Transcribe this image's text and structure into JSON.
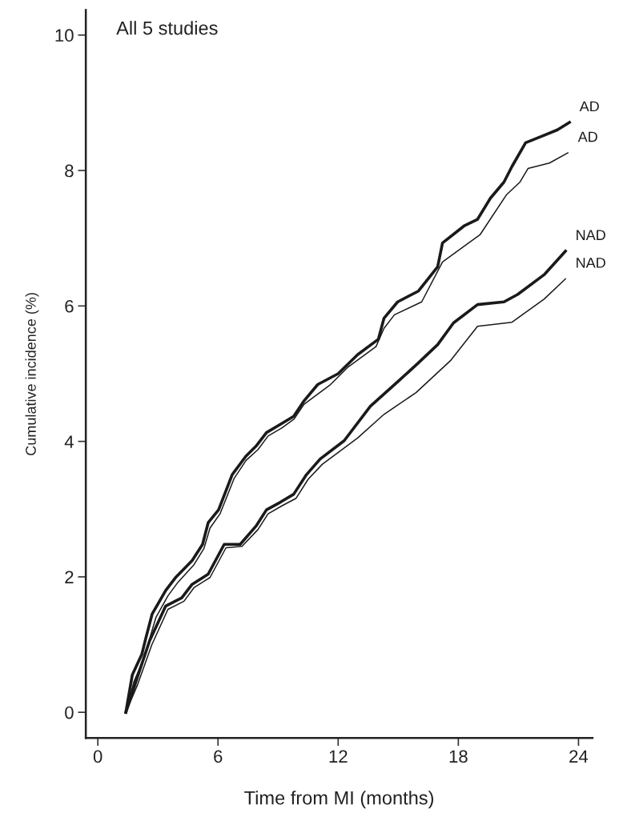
{
  "chart_data": {
    "type": "line",
    "title": "All 5 studies",
    "xlabel": "Time from MI (months)",
    "ylabel": "Cumulative incidence (%)",
    "xlim": [
      -0.6,
      24.7
    ],
    "ylim": [
      -0.38,
      10.37
    ],
    "xticks": [
      0,
      6,
      12,
      18,
      24
    ],
    "yticks": [
      0,
      2,
      4,
      6,
      8,
      10
    ],
    "grid": false,
    "legend": false,
    "marker": "none",
    "line_style": "solid",
    "series": [
      {
        "name": "AD",
        "color": "#1a1a1a",
        "x": [
          1.4,
          1.72,
          2.2,
          2.4,
          2.71,
          3.39,
          3.91,
          4.71,
          5.23,
          5.51,
          6.03,
          6.71,
          7.39,
          7.9,
          8.42,
          9.1,
          9.78,
          10.3,
          10.98,
          12.0,
          12.97,
          14.01,
          14.29,
          14.97,
          16.01,
          16.97,
          17.21,
          18.28,
          18.96,
          19.6,
          20.28,
          20.68,
          21.36,
          22.28,
          22.95,
          23.55
        ],
        "values": [
          0,
          0.55,
          0.86,
          1.1,
          1.45,
          1.8,
          2.0,
          2.24,
          2.48,
          2.8,
          2.99,
          3.51,
          3.78,
          3.93,
          4.13,
          4.25,
          4.37,
          4.6,
          4.84,
          5.0,
          5.28,
          5.51,
          5.82,
          6.06,
          6.22,
          6.58,
          6.93,
          7.18,
          7.28,
          7.59,
          7.83,
          8.06,
          8.41,
          8.52,
          8.6,
          8.71
        ]
      },
      {
        "name": "AD",
        "color": "#1a1a1a",
        "x": [
          1.4,
          1.8,
          2.3,
          2.6,
          2.9,
          3.5,
          4.0,
          4.8,
          5.3,
          5.6,
          6.1,
          6.8,
          7.4,
          8.0,
          8.5,
          9.2,
          9.8,
          10.3,
          11.62,
          12.5,
          13.89,
          14.29,
          14.81,
          16.17,
          17.21,
          18.28,
          19.08,
          20.4,
          21.08,
          21.48,
          22.55,
          23.47
        ],
        "values": [
          0,
          0.45,
          0.8,
          1.1,
          1.4,
          1.72,
          1.92,
          2.18,
          2.42,
          2.72,
          2.93,
          3.45,
          3.72,
          3.88,
          4.08,
          4.2,
          4.33,
          4.55,
          4.84,
          5.1,
          5.4,
          5.67,
          5.87,
          6.06,
          6.65,
          6.88,
          7.05,
          7.64,
          7.83,
          8.03,
          8.11,
          8.26
        ]
      },
      {
        "name": "NAD",
        "color": "#1a1a1a",
        "x": [
          1.4,
          1.92,
          2.59,
          3.39,
          4.19,
          4.71,
          5.51,
          6.31,
          7.11,
          7.9,
          8.42,
          9.1,
          9.78,
          10.42,
          11.1,
          12.3,
          13.61,
          14.97,
          16.01,
          16.97,
          17.76,
          18.96,
          20.28,
          20.96,
          22.28,
          23.35
        ],
        "values": [
          0,
          0.47,
          1.06,
          1.57,
          1.69,
          1.89,
          2.04,
          2.48,
          2.48,
          2.75,
          2.99,
          3.1,
          3.22,
          3.51,
          3.74,
          4.01,
          4.52,
          4.88,
          5.16,
          5.43,
          5.75,
          6.02,
          6.06,
          6.17,
          6.46,
          6.81
        ]
      },
      {
        "name": "NAD",
        "color": "#1a1a1a",
        "x": [
          1.4,
          2.0,
          2.7,
          3.5,
          4.3,
          4.8,
          5.6,
          6.4,
          7.2,
          8.0,
          8.5,
          9.2,
          9.9,
          10.5,
          11.2,
          12.97,
          14.29,
          15.89,
          17.6,
          18.96,
          20.68,
          22.28,
          23.35
        ],
        "values": [
          0,
          0.42,
          1.0,
          1.52,
          1.64,
          1.84,
          1.99,
          2.43,
          2.45,
          2.7,
          2.93,
          3.05,
          3.16,
          3.44,
          3.66,
          4.05,
          4.4,
          4.72,
          5.19,
          5.7,
          5.76,
          6.1,
          6.4
        ]
      }
    ]
  }
}
